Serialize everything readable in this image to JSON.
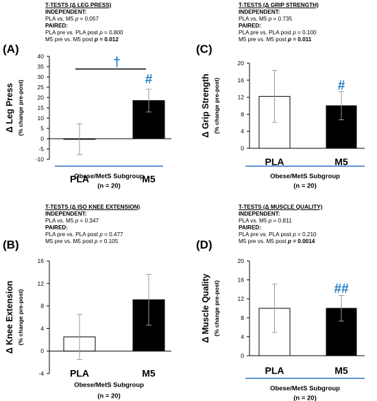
{
  "chart_data": [
    {
      "type": "bar",
      "panel_letter": "(A)",
      "categories": [
        "PLA",
        "M5"
      ],
      "values": [
        -0.3,
        18.5
      ],
      "errors": [
        7.5,
        5.5
      ],
      "ylabel": "Δ Leg Press",
      "ylabel_sub": "(% change pre-post)",
      "ylim": [
        -10,
        40
      ],
      "yticks": [
        "-10",
        "-5",
        "0",
        "5",
        "10",
        "15",
        "20",
        "25",
        "30",
        "35",
        "40"
      ],
      "ytick_values": [
        -10,
        -5,
        0,
        5,
        10,
        15,
        20,
        25,
        30,
        35,
        40
      ],
      "group_label": "Obese/MetS Subgroup",
      "n_label": "(n = 20)",
      "marks": [
        {
          "text": "#",
          "category": 1,
          "value": 28.5
        }
      ],
      "comparison_bracket": {
        "text": "†",
        "value": 36.5
      },
      "stats": {
        "title": "T-TESTS (Δ LEG PRESS)",
        "independent_head": "INDEPENDENT:",
        "independent": [
          {
            "label": "PLA vs. M5 ",
            "p_label": "p",
            "p_value": " =  0.057",
            "bold": false
          }
        ],
        "paired_head": "PAIRED:",
        "paired": [
          {
            "label": "PLA pre vs. PLA post ",
            "p_label": "p",
            "p_value": " = 0.800",
            "bold": false
          },
          {
            "label": "M5 pre vs. M5 post ",
            "p_label": "p",
            "p_value": " =  0.012",
            "bold": true
          }
        ]
      }
    },
    {
      "type": "bar",
      "panel_letter": "(B)",
      "categories": [
        "PLA",
        "M5"
      ],
      "values": [
        2.5,
        9.1
      ],
      "errors": [
        4.0,
        4.5
      ],
      "ylabel": "Δ Knee Extension",
      "ylabel_sub": "(% change pre-post)",
      "ylim": [
        -4,
        16
      ],
      "yticks": [
        "-4",
        "0",
        "4",
        "8",
        "12",
        "16"
      ],
      "ytick_values": [
        -4,
        0,
        4,
        8,
        12,
        16
      ],
      "group_label": "Obese/MetS Subgroup",
      "n_label": "(n = 20)",
      "marks": [],
      "stats": {
        "title": "T-TESTS (Δ ISO KNEE EXTENSION)",
        "independent_head": "INDEPENDENT:",
        "independent": [
          {
            "label": "PLA vs. M5 ",
            "p_label": "p",
            "p_value": " =  0.347",
            "bold": false
          }
        ],
        "paired_head": "PAIRED:",
        "paired": [
          {
            "label": "PLA pre vs. PLA post ",
            "p_label": "p",
            "p_value": " = 0.477",
            "bold": false
          },
          {
            "label": "M5 pre vs. M5 post ",
            "p_label": "p",
            "p_value": " =  0.105",
            "bold": false
          }
        ]
      }
    },
    {
      "type": "bar",
      "panel_letter": "(C)",
      "categories": [
        "PLA",
        "M5"
      ],
      "values": [
        12.2,
        10.0
      ],
      "errors": [
        6.1,
        3.3
      ],
      "ylabel": "Δ Grip Strength",
      "ylabel_sub": "(% change pre-post)",
      "ylim": [
        0,
        20
      ],
      "yticks": [
        "0",
        "4",
        "8",
        "12",
        "16",
        "20"
      ],
      "ytick_values": [
        0,
        4,
        8,
        12,
        16,
        20
      ],
      "group_label": "Obese/MetS Subgroup",
      "n_label": "(n = 20)",
      "marks": [
        {
          "text": "#",
          "category": 1,
          "value": 14.6
        }
      ],
      "stats": {
        "title": "T-TESTS (Δ GRIP STRENGTH)",
        "independent_head": "INDEPENDENT:",
        "independent": [
          {
            "label": "PLA vs. M5 ",
            "p_label": "p",
            "p_value": " =  0.735",
            "bold": false
          }
        ],
        "paired_head": "PAIRED:",
        "paired": [
          {
            "label": "PLA pre vs. PLA post ",
            "p_label": "p",
            "p_value": " = 0.100",
            "bold": false
          },
          {
            "label": "M5 pre vs. M5 post ",
            "p_label": "p",
            "p_value": " =  0.011",
            "bold": true
          }
        ]
      }
    },
    {
      "type": "bar",
      "panel_letter": "(D)",
      "categories": [
        "PLA",
        "M5"
      ],
      "values": [
        10.0,
        10.0
      ],
      "errors": [
        5.1,
        2.7
      ],
      "ylabel": "Δ Muscle Quality",
      "ylabel_sub": "(% change pre-post)",
      "ylim": [
        0,
        20
      ],
      "yticks": [
        "0",
        "4",
        "8",
        "12",
        "16",
        "20"
      ],
      "ytick_values": [
        0,
        4,
        8,
        12,
        16,
        20
      ],
      "group_label": "Obese/MetS Subgroup",
      "n_label": "(n = 20)",
      "marks": [
        {
          "text": "##",
          "category": 1,
          "value": 14.0
        }
      ],
      "stats": {
        "title": "T-TESTS (Δ MUSCLE QUALITY)",
        "independent_head": "INDEPENDENT:",
        "independent": [
          {
            "label": "PLA vs. M5 ",
            "p_label": "p",
            "p_value": " =  0.811",
            "bold": false
          }
        ],
        "paired_head": "PAIRED:",
        "paired": [
          {
            "label": "PLA pre vs. PLA post ",
            "p_label": "p",
            "p_value": " = 0.210",
            "bold": false
          },
          {
            "label": "M5 pre vs. M5 post ",
            "p_label": "p",
            "p_value": " =  0.0014",
            "bold": true
          }
        ]
      }
    }
  ],
  "colors": {
    "pla_fill": "#ffffff",
    "m5_fill": "#000000",
    "mark_color": "#1f7dc3",
    "underline_color": "#2e75c7",
    "axis_color": "#000000",
    "errorbar_color": "#9a9a9a"
  }
}
